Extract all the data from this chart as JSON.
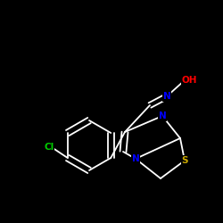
{
  "background_color": "#000000",
  "bond_color": "#ffffff",
  "atom_colors": {
    "N": "#0000ff",
    "O": "#ff0000",
    "S": "#ccaa00",
    "Cl": "#00cc00",
    "C": "#ffffff"
  },
  "figsize": [
    2.5,
    2.5
  ],
  "dpi": 100
}
